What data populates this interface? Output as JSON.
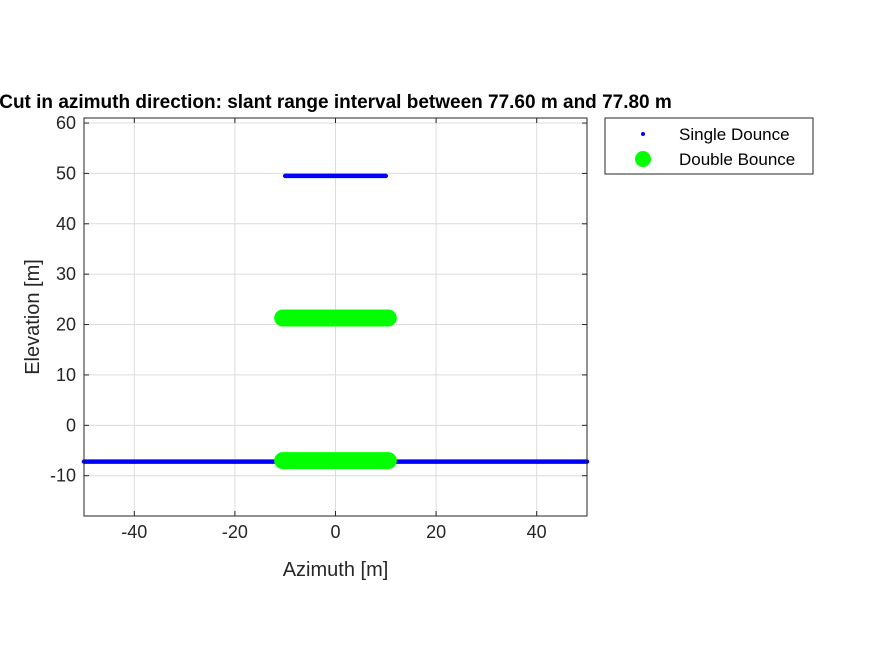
{
  "chart_data": {
    "type": "scatter",
    "title": "Cut in azimuth direction: slant range interval between 77.60 m and 77.80 m",
    "xlabel": "Azimuth [m]",
    "ylabel": "Elevation [m]",
    "xlim": [
      -50,
      50
    ],
    "ylim": [
      -18,
      61
    ],
    "xticks": [
      -40,
      -20,
      0,
      20,
      40
    ],
    "yticks": [
      -10,
      0,
      10,
      20,
      30,
      40,
      50,
      60
    ],
    "grid": true,
    "legend_position": "outside-top-right",
    "series": [
      {
        "name": "Single Dounce",
        "color": "#0000ff",
        "marker": "dot",
        "segments": [
          {
            "x": [
              -10,
              10
            ],
            "y": [
              49.5,
              49.5
            ]
          },
          {
            "x": [
              -50,
              50
            ],
            "y": [
              -7.2,
              -7.2
            ]
          }
        ]
      },
      {
        "name": "Double Bounce",
        "color": "#00ff00",
        "marker": "large-dot",
        "segments": [
          {
            "x": [
              -10.5,
              10.5
            ],
            "y": [
              21.3,
              21.3
            ]
          },
          {
            "x": [
              -10.5,
              10.5
            ],
            "y": [
              -7.0,
              -7.0
            ]
          }
        ]
      }
    ]
  }
}
